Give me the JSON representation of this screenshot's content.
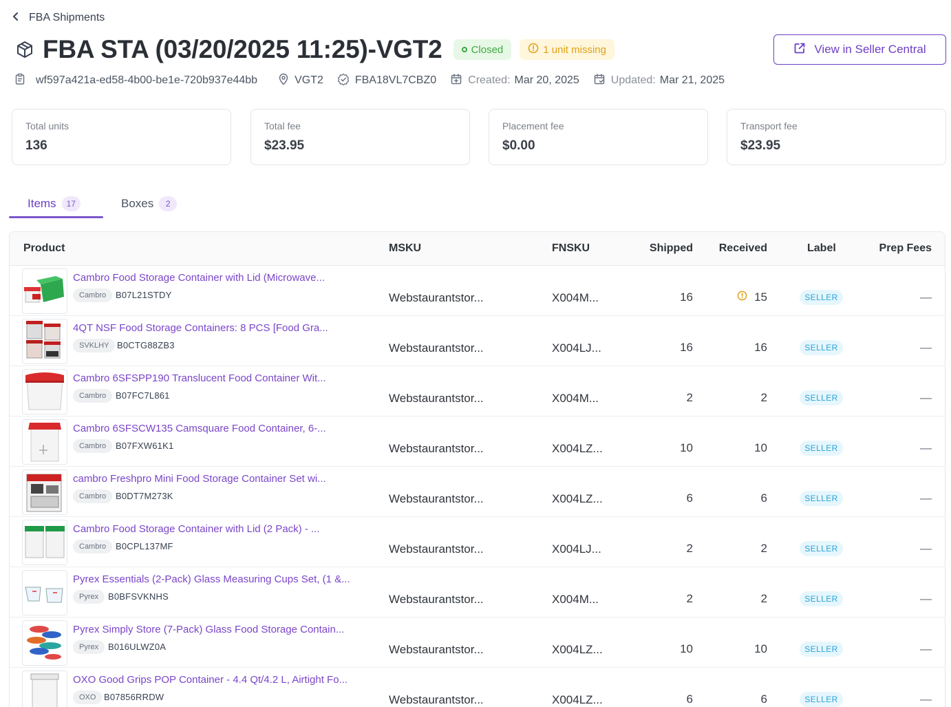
{
  "breadcrumb": {
    "back_label": "FBA Shipments"
  },
  "header": {
    "title": "FBA STA (03/20/2025 11:25)-VGT2",
    "status_badge": "Closed",
    "warning_badge": "1 unit missing",
    "view_button_label": "View in Seller Central"
  },
  "meta": {
    "shipment_uuid": "wf597a421a-ed58-4b00-be1e-720b937e44bb",
    "warehouse": "VGT2",
    "shipment_id": "FBA18VL7CBZ0",
    "created_label": "Created:",
    "created_value": "Mar 20, 2025",
    "updated_label": "Updated:",
    "updated_value": "Mar 21, 2025"
  },
  "cards": [
    {
      "label": "Total units",
      "value": "136"
    },
    {
      "label": "Total fee",
      "value": "$23.95"
    },
    {
      "label": "Placement fee",
      "value": "$0.00"
    },
    {
      "label": "Transport fee",
      "value": "$23.95"
    }
  ],
  "tabs": [
    {
      "label": "Items",
      "count": "17"
    },
    {
      "label": "Boxes",
      "count": "2"
    }
  ],
  "table": {
    "columns": [
      "Product",
      "MSKU",
      "FNSKU",
      "Shipped",
      "Received",
      "Label",
      "Prep Fees"
    ],
    "rows": [
      {
        "name": "Cambro Food Storage Container with Lid (Microwave...",
        "brand": "Cambro",
        "asin": "B07L21STDY",
        "msku": "Webstaurantstor...",
        "fnsku": "X004M...",
        "shipped": "16",
        "received": "15",
        "received_warning": true,
        "label": "SELLER",
        "prep": "—",
        "thumb": "green-red-lids"
      },
      {
        "name": "4QT NSF Food Storage Containers: 8 PCS [Food Gra...",
        "brand": "SVKLHY",
        "asin": "B0CTG88ZB3",
        "msku": "Webstaurantstor...",
        "fnsku": "X004LJ...",
        "shipped": "16",
        "received": "16",
        "received_warning": false,
        "label": "SELLER",
        "prep": "—",
        "thumb": "red-stack"
      },
      {
        "name": "Cambro 6SFSPP190 Translucent Food Container Wit...",
        "brand": "Cambro",
        "asin": "B07FC7L861",
        "msku": "Webstaurantstor...",
        "fnsku": "X004M...",
        "shipped": "2",
        "received": "2",
        "received_warning": false,
        "label": "SELLER",
        "prep": "—",
        "thumb": "red-lid-box"
      },
      {
        "name": "Cambro 6SFSCW135 Camsquare Food Container, 6-...",
        "brand": "Cambro",
        "asin": "B07FXW61K1",
        "msku": "Webstaurantstor...",
        "fnsku": "X004LZ...",
        "shipped": "10",
        "received": "10",
        "received_warning": false,
        "label": "SELLER",
        "prep": "—",
        "thumb": "red-lid-tall"
      },
      {
        "name": "cambro Freshpro Mini Food Storage Container Set wi...",
        "brand": "Cambro",
        "asin": "B0DT7M273K",
        "msku": "Webstaurantstor...",
        "fnsku": "X004LZ...",
        "shipped": "6",
        "received": "6",
        "received_warning": false,
        "label": "SELLER",
        "prep": "—",
        "thumb": "packaged-set"
      },
      {
        "name": "Cambro Food Storage Container with Lid (2 Pack) - ...",
        "brand": "Cambro",
        "asin": "B0CPL137MF",
        "msku": "Webstaurantstor...",
        "fnsku": "X004LJ...",
        "shipped": "2",
        "received": "2",
        "received_warning": false,
        "label": "SELLER",
        "prep": "—",
        "thumb": "green-pair"
      },
      {
        "name": "Pyrex Essentials (2-Pack) Glass Measuring Cups Set, (1 &...",
        "brand": "Pyrex",
        "asin": "B0BFSVKNHS",
        "msku": "Webstaurantstor...",
        "fnsku": "X004M...",
        "shipped": "2",
        "received": "2",
        "received_warning": false,
        "label": "SELLER",
        "prep": "—",
        "thumb": "measuring-cups"
      },
      {
        "name": "Pyrex Simply Store (7-Pack) Glass Food Storage Contain...",
        "brand": "Pyrex",
        "asin": "B016ULWZ0A",
        "msku": "Webstaurantstor...",
        "fnsku": "X004LZ...",
        "shipped": "10",
        "received": "10",
        "received_warning": false,
        "label": "SELLER",
        "prep": "—",
        "thumb": "glass-stack"
      },
      {
        "name": "OXO Good Grips POP Container - 4.4 Qt/4.2 L, Airtight Fo...",
        "brand": "OXO",
        "asin": "B07856RRDW",
        "msku": "Webstaurantstor...",
        "fnsku": "X004LZ...",
        "shipped": "6",
        "received": "6",
        "received_warning": false,
        "label": "SELLER",
        "prep": "—",
        "thumb": "oxo-pop"
      }
    ]
  },
  "colors": {
    "accent": "#6d3fc6",
    "success": "#3ea640",
    "warning": "#e0a21a",
    "label_blue": "#29a3d6"
  }
}
